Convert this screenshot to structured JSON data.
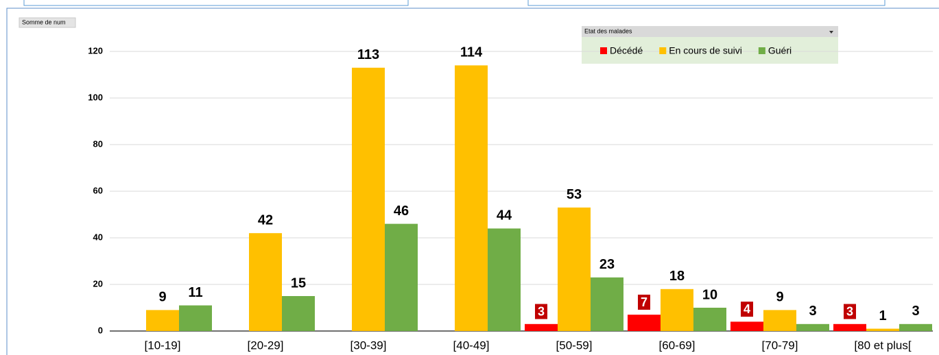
{
  "chart_data": {
    "type": "bar",
    "field_button": "Somme de num",
    "legend_title": "Etat des malades",
    "categories": [
      "[10-19]",
      "[20-29]",
      "[30-39]",
      "[40-49]",
      "[50-59]",
      "[60-69]",
      "[70-79]",
      "[80 et plus["
    ],
    "series": [
      {
        "name": "Décédé",
        "color": "#ff0000",
        "values": [
          null,
          null,
          null,
          null,
          3,
          7,
          4,
          3
        ]
      },
      {
        "name": "En cours de suivi",
        "color": "#ffc000",
        "values": [
          9,
          42,
          113,
          114,
          53,
          18,
          9,
          1
        ]
      },
      {
        "name": "Guéri",
        "color": "#70ad47",
        "values": [
          11,
          15,
          46,
          44,
          23,
          10,
          3,
          3
        ]
      }
    ],
    "ylim": [
      0,
      130
    ],
    "yticks": [
      0,
      20,
      40,
      60,
      80,
      100,
      120
    ],
    "grid": true,
    "legend": "top-right"
  }
}
